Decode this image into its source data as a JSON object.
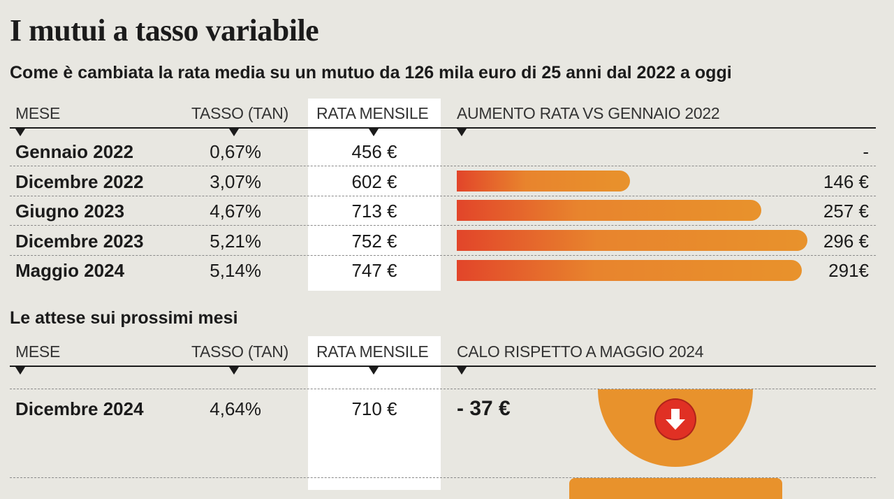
{
  "title": "I mutui a tasso variabile",
  "subtitle": "Come è cambiata la rata media su un mutuo da 126 mila euro di 25 anni dal 2022 a oggi",
  "table1": {
    "headers": {
      "mese": "MESE",
      "tasso": "TASSO (TAN)",
      "rata": "RATA MENSILE",
      "aumento": "AUMENTO RATA VS GENNAIO 2022"
    },
    "rows": [
      {
        "mese": "Gennaio 2022",
        "tasso": "0,67%",
        "rata": "456 €",
        "aumento_label": "-"
      },
      {
        "mese": "Dicembre 2022",
        "tasso": "3,07%",
        "rata": "602 €",
        "aumento_label": "146 €"
      },
      {
        "mese": "Giugno 2023",
        "tasso": "4,67%",
        "rata": "713 €",
        "aumento_label": "257 €"
      },
      {
        "mese": "Dicembre 2023",
        "tasso": "5,21%",
        "rata": "752 €",
        "aumento_label": "296 €"
      },
      {
        "mese": "Maggio 2024",
        "tasso": "5,14%",
        "rata": "747 €",
        "aumento_label": "291€"
      }
    ]
  },
  "section2_title": "Le attese sui prossimi mesi",
  "table2": {
    "headers": {
      "mese": "MESE",
      "tasso": "TASSO (TAN)",
      "rata": "RATA MENSILE",
      "calo": "CALO RISPETTO A MAGGIO 2024"
    },
    "rows": [
      {
        "mese": "Dicembre 2024",
        "tasso": "4,64%",
        "rata": "710 €",
        "calo_label": "- 37 €"
      }
    ]
  },
  "chart_data": {
    "type": "bar",
    "orientation": "horizontal",
    "categories": [
      "Gennaio 2022",
      "Dicembre 2022",
      "Giugno 2023",
      "Dicembre 2023",
      "Maggio 2024"
    ],
    "values": [
      0,
      146,
      257,
      296,
      291
    ],
    "unit": "€",
    "xlim": [
      0,
      300
    ],
    "bar_color_start": "#e2452a",
    "bar_color_end": "#e8922c"
  },
  "icons": {
    "header_marker": "triangle-down-icon",
    "calo_icon": "arrow-down-circle-icon"
  },
  "colors": {
    "background": "#e8e7e1",
    "accent_orange": "#e8922c",
    "accent_red": "#e03024"
  }
}
